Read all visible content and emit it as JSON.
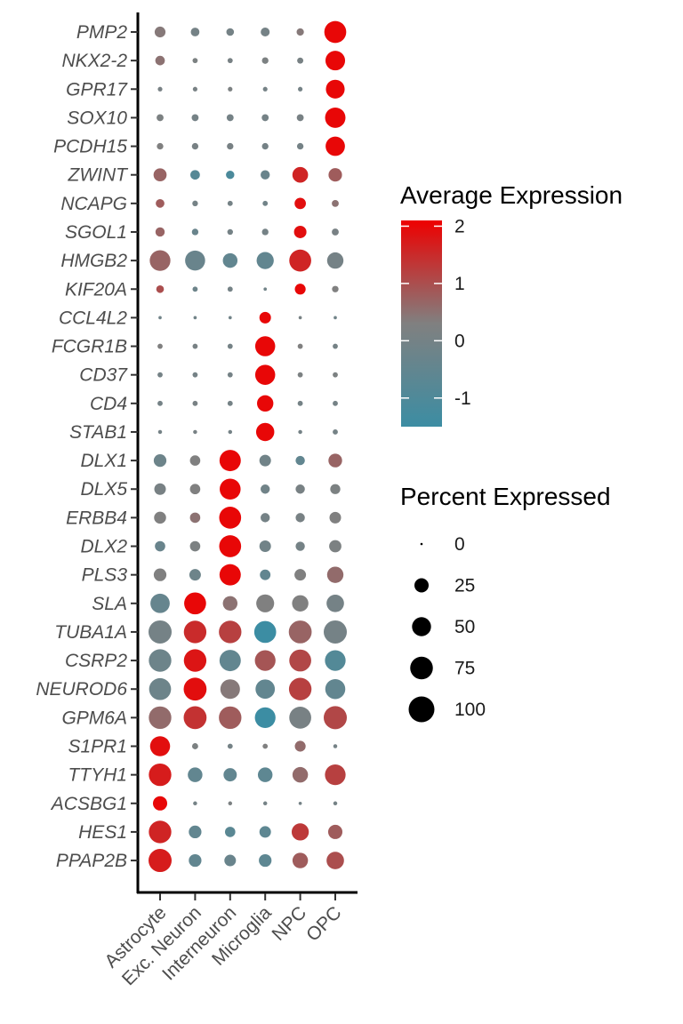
{
  "chart_data": {
    "type": "dotplot",
    "genes": [
      "PMP2",
      "NKX2-2",
      "GPR17",
      "SOX10",
      "PCDH15",
      "ZWINT",
      "NCAPG",
      "SGOL1",
      "HMGB2",
      "KIF20A",
      "CCL4L2",
      "FCGR1B",
      "CD37",
      "CD4",
      "STAB1",
      "DLX1",
      "DLX5",
      "ERBB4",
      "DLX2",
      "PLS3",
      "SLA",
      "TUBA1A",
      "CSRP2",
      "NEUROD6",
      "GPM6A",
      "S1PR1",
      "TTYH1",
      "ACSBG1",
      "HES1",
      "PPAP2B"
    ],
    "cell_types": [
      "Astrocyte",
      "Exc. Neuron",
      "Interneuron",
      "Microglia",
      "NPC",
      "OPC"
    ],
    "pct_expressed": [
      [
        22,
        14,
        11,
        15,
        10,
        90
      ],
      [
        17,
        5,
        5,
        8,
        7,
        72
      ],
      [
        4,
        4,
        4,
        4,
        4,
        66
      ],
      [
        9,
        9,
        9,
        9,
        9,
        78
      ],
      [
        8,
        8,
        8,
        8,
        8,
        70
      ],
      [
        32,
        17,
        13,
        16,
        46,
        34
      ],
      [
        14,
        6,
        5,
        5,
        24,
        9
      ],
      [
        16,
        8,
        6,
        8,
        29,
        9
      ],
      [
        80,
        75,
        40,
        55,
        90,
        50
      ],
      [
        11,
        5,
        5,
        2,
        22,
        8
      ],
      [
        2,
        2,
        2,
        25,
        2,
        2
      ],
      [
        5,
        5,
        5,
        75,
        5,
        5
      ],
      [
        5,
        5,
        5,
        75,
        5,
        5
      ],
      [
        5,
        5,
        5,
        50,
        5,
        5
      ],
      [
        3,
        3,
        3,
        62,
        3,
        5
      ],
      [
        30,
        20,
        85,
        25,
        16,
        35
      ],
      [
        25,
        20,
        82,
        16,
        16,
        19
      ],
      [
        27,
        20,
        90,
        16,
        16,
        25
      ],
      [
        20,
        20,
        90,
        25,
        16,
        28
      ],
      [
        30,
        25,
        85,
        21,
        25,
        50
      ],
      [
        70,
        90,
        40,
        60,
        50,
        57
      ],
      [
        100,
        95,
        95,
        90,
        98,
        100
      ],
      [
        95,
        95,
        85,
        80,
        90,
        80
      ],
      [
        90,
        98,
        72,
        70,
        95,
        75
      ],
      [
        95,
        98,
        95,
        80,
        90,
        100
      ],
      [
        75,
        7,
        5,
        5,
        22,
        3
      ],
      [
        95,
        40,
        33,
        40,
        45,
        80
      ],
      [
        38,
        3,
        3,
        3,
        2,
        3
      ],
      [
        95,
        30,
        20,
        25,
        55,
        38
      ],
      [
        100,
        30,
        25,
        30,
        45,
        57
      ]
    ],
    "avg_expression": [
      [
        0.4,
        0.0,
        0.0,
        0.0,
        0.4,
        2.0
      ],
      [
        0.5,
        0.2,
        0.1,
        0.2,
        0.1,
        2.0
      ],
      [
        0.1,
        0.1,
        0.2,
        0.0,
        0.0,
        2.0
      ],
      [
        0.2,
        0.0,
        0.0,
        0.0,
        0.1,
        2.0
      ],
      [
        0.3,
        0.1,
        0.1,
        0.0,
        0.0,
        2.0
      ],
      [
        0.7,
        -0.8,
        -1.1,
        -0.3,
        1.6,
        0.8
      ],
      [
        0.8,
        0.0,
        0.0,
        -0.1,
        1.9,
        0.5
      ],
      [
        0.7,
        -0.3,
        0.0,
        0.0,
        1.9,
        0.1
      ],
      [
        0.7,
        -0.3,
        -0.5,
        -0.5,
        1.6,
        0.0
      ],
      [
        1.0,
        -0.2,
        0.0,
        -0.1,
        2.0,
        0.3
      ],
      [
        -0.1,
        -0.1,
        -0.1,
        2.0,
        0.1,
        -0.1
      ],
      [
        0.3,
        0.1,
        0.0,
        2.0,
        0.3,
        0.0
      ],
      [
        0.0,
        0.0,
        0.0,
        2.0,
        0.2,
        0.2
      ],
      [
        0.0,
        0.1,
        0.0,
        2.0,
        0.0,
        0.0
      ],
      [
        0.0,
        0.1,
        0.0,
        2.0,
        0.0,
        0.0
      ],
      [
        -0.2,
        0.3,
        2.0,
        -0.1,
        -0.5,
        0.7
      ],
      [
        0.1,
        0.3,
        2.0,
        -0.1,
        0.1,
        0.2
      ],
      [
        0.3,
        0.5,
        2.0,
        0.0,
        0.1,
        0.3
      ],
      [
        -0.3,
        0.2,
        2.0,
        -0.1,
        0.0,
        0.2
      ],
      [
        0.3,
        -0.2,
        2.0,
        -0.5,
        0.3,
        0.6
      ],
      [
        -0.4,
        2.0,
        0.5,
        0.3,
        0.3,
        0.0
      ],
      [
        0.0,
        1.5,
        1.2,
        -1.5,
        0.7,
        0.0
      ],
      [
        -0.2,
        1.8,
        -0.5,
        0.9,
        1.1,
        -0.9
      ],
      [
        -0.2,
        1.9,
        0.4,
        -0.5,
        1.2,
        -0.5
      ],
      [
        0.6,
        1.4,
        0.8,
        -1.6,
        0.1,
        1.1
      ],
      [
        1.9,
        0.2,
        0.0,
        0.3,
        0.6,
        0.0
      ],
      [
        1.7,
        -0.5,
        -0.5,
        -0.6,
        0.6,
        1.2
      ],
      [
        2.0,
        0.0,
        0.2,
        0.0,
        0.0,
        0.0
      ],
      [
        1.6,
        -0.5,
        -0.7,
        -0.6,
        1.3,
        0.8
      ],
      [
        1.7,
        -0.5,
        -0.3,
        -0.6,
        0.8,
        1.0
      ]
    ],
    "color_legend": {
      "title": "Average Expression",
      "ticks": [
        2,
        1,
        0,
        -1
      ],
      "range": [
        -1.5,
        2.1
      ],
      "low_color": "#3C8DA3",
      "mid_color": "#808080",
      "high_color": "#EE0000"
    },
    "size_legend": {
      "title": "Percent Expressed",
      "values": [
        0,
        25,
        50,
        75,
        100
      ]
    }
  }
}
